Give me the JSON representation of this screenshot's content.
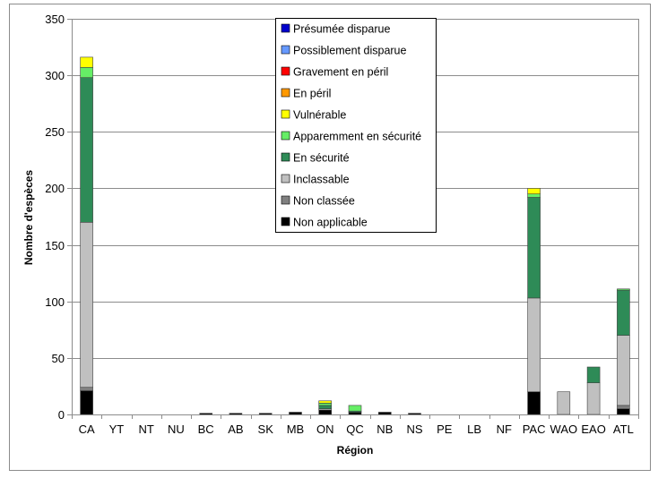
{
  "chart_data": {
    "type": "bar",
    "stacked": true,
    "xlabel": "Région",
    "ylabel": "Nombre d'espèces",
    "ylim": [
      0,
      350
    ],
    "yticks": [
      0,
      50,
      100,
      150,
      200,
      250,
      300,
      350
    ],
    "grid": true,
    "legend_position": "top-center",
    "categories": [
      "CA",
      "YT",
      "NT",
      "NU",
      "BC",
      "AB",
      "SK",
      "MB",
      "ON",
      "QC",
      "NB",
      "NS",
      "PE",
      "LB",
      "NF",
      "PAC",
      "WAO",
      "EAO",
      "ATL"
    ],
    "series": [
      {
        "name": "Non applicable",
        "color": "#000000",
        "values": [
          21,
          0,
          0,
          0,
          1,
          1,
          1,
          2,
          4,
          2,
          2,
          1,
          0,
          0,
          0,
          20,
          0,
          0,
          5
        ]
      },
      {
        "name": "Non classée",
        "color": "#808080",
        "values": [
          3,
          0,
          0,
          0,
          0,
          0,
          0,
          0,
          0,
          0,
          0,
          0,
          0,
          0,
          0,
          0,
          0,
          0,
          3
        ]
      },
      {
        "name": "Inclassable",
        "color": "#c0c0c0",
        "values": [
          146,
          0,
          0,
          0,
          0,
          0,
          0,
          0,
          1,
          0,
          0,
          0,
          0,
          0,
          0,
          83,
          20,
          28,
          62
        ]
      },
      {
        "name": "En sécurité",
        "color": "#2e8b57",
        "values": [
          128,
          0,
          0,
          0,
          0,
          0,
          0,
          0,
          3,
          1,
          0,
          0,
          0,
          0,
          0,
          89,
          0,
          14,
          40
        ]
      },
      {
        "name": "Apparemment en sécurité",
        "color": "#66ee66",
        "values": [
          9,
          0,
          0,
          0,
          0,
          0,
          0,
          0,
          2,
          5,
          0,
          0,
          0,
          0,
          0,
          3,
          0,
          0,
          1
        ]
      },
      {
        "name": "Vulnérable",
        "color": "#ffff00",
        "values": [
          9,
          0,
          0,
          0,
          0,
          0,
          0,
          0,
          2,
          0,
          0,
          0,
          0,
          0,
          0,
          5,
          0,
          0,
          0
        ]
      },
      {
        "name": "En péril",
        "color": "#ff9900",
        "values": [
          0,
          0,
          0,
          0,
          0,
          0,
          0,
          0,
          0,
          0,
          0,
          0,
          0,
          0,
          0,
          0,
          0,
          0,
          0
        ]
      },
      {
        "name": "Gravement en péril",
        "color": "#ff0000",
        "values": [
          0,
          0,
          0,
          0,
          0,
          0,
          0,
          0,
          0,
          0,
          0,
          0,
          0,
          0,
          0,
          0,
          0,
          0,
          0
        ]
      },
      {
        "name": "Possiblement disparue",
        "color": "#6699ff",
        "values": [
          0,
          0,
          0,
          0,
          0,
          0,
          0,
          0,
          0,
          0,
          0,
          0,
          0,
          0,
          0,
          0,
          0,
          0,
          0
        ]
      },
      {
        "name": "Présumée disparue",
        "color": "#0000cc",
        "values": [
          0,
          0,
          0,
          0,
          0,
          0,
          0,
          0,
          0,
          0,
          0,
          0,
          0,
          0,
          0,
          0,
          0,
          0,
          0
        ]
      }
    ],
    "legend_order": [
      "Présumée disparue",
      "Possiblement disparue",
      "Gravement en péril",
      "En péril",
      "Vulnérable",
      "Apparemment en sécurité",
      "En sécurité",
      "Inclassable",
      "Non classée",
      "Non applicable"
    ]
  }
}
